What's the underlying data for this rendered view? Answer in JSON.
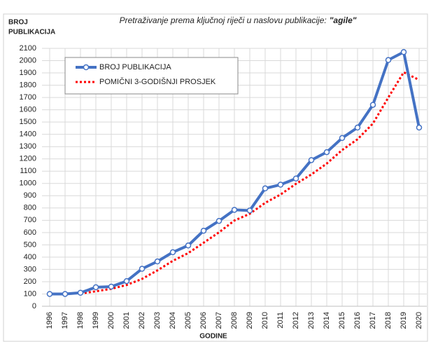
{
  "chart_data": {
    "type": "line",
    "title": "Pretraživanje prema ključnoj riječi u naslovu publikacije:",
    "title_keyword": "\"agile\"",
    "ylabel": [
      "BROJ",
      "PUBLIKACIJA"
    ],
    "xlabel": "GODINE",
    "categories": [
      "1996",
      "1997",
      "1998",
      "1999",
      "2000",
      "2001",
      "2002",
      "2003",
      "2004",
      "2005",
      "2006",
      "2007",
      "2008",
      "2009",
      "2010",
      "2011",
      "2012",
      "2013",
      "2014",
      "2015",
      "2016",
      "2017",
      "2018",
      "2019",
      "2020"
    ],
    "series": [
      {
        "name": "BROJ PUBLIKACIJA",
        "color": "#4472c4",
        "values": [
          100,
          100,
          110,
          155,
          160,
          205,
          305,
          365,
          440,
          495,
          615,
          695,
          785,
          780,
          960,
          990,
          1040,
          1190,
          1255,
          1370,
          1455,
          1640,
          2005,
          2070,
          1455
        ]
      },
      {
        "name": "POMIČNI 3-GODIŠNJI PROSJEK",
        "color": "#ff0000",
        "values": [
          null,
          null,
          103,
          122,
          142,
          173,
          223,
          292,
          370,
          433,
          517,
          602,
          698,
          753,
          842,
          910,
          997,
          1073,
          1162,
          1272,
          1360,
          1488,
          1700,
          1905,
          1843
        ]
      }
    ],
    "ylim": [
      0,
      2100
    ],
    "yticks": [
      0,
      100,
      200,
      300,
      400,
      500,
      600,
      700,
      800,
      900,
      1000,
      1100,
      1200,
      1300,
      1400,
      1500,
      1600,
      1700,
      1800,
      1900,
      2000,
      2100
    ],
    "grid": true
  }
}
